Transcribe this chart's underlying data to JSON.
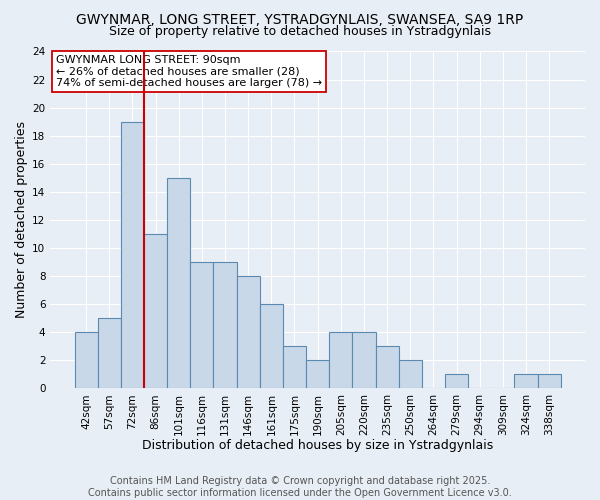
{
  "title": "GWYNMAR, LONG STREET, YSTRADGYNLAIS, SWANSEA, SA9 1RP",
  "subtitle": "Size of property relative to detached houses in Ystradgynlais",
  "xlabel": "Distribution of detached houses by size in Ystradgynlais",
  "ylabel": "Number of detached properties",
  "categories": [
    "42sqm",
    "57sqm",
    "72sqm",
    "86sqm",
    "101sqm",
    "116sqm",
    "131sqm",
    "146sqm",
    "161sqm",
    "175sqm",
    "190sqm",
    "205sqm",
    "220sqm",
    "235sqm",
    "250sqm",
    "264sqm",
    "279sqm",
    "294sqm",
    "309sqm",
    "324sqm",
    "338sqm"
  ],
  "values": [
    4,
    5,
    19,
    11,
    15,
    9,
    9,
    8,
    6,
    3,
    2,
    4,
    4,
    3,
    2,
    0,
    1,
    0,
    0,
    1,
    1
  ],
  "bar_color": "#c8d8e8",
  "bar_edge_color": "#5a8ab0",
  "vline_x_index": 3,
  "vline_color": "#cc0000",
  "ylim": [
    0,
    24
  ],
  "yticks": [
    0,
    2,
    4,
    6,
    8,
    10,
    12,
    14,
    16,
    18,
    20,
    22,
    24
  ],
  "annotation_title": "GWYNMAR LONG STREET: 90sqm",
  "annotation_line1": "← 26% of detached houses are smaller (28)",
  "annotation_line2": "74% of semi-detached houses are larger (78) →",
  "annotation_box_color": "#ffffff",
  "annotation_box_edge": "#cc0000",
  "footnote": "Contains HM Land Registry data © Crown copyright and database right 2025.\nContains public sector information licensed under the Open Government Licence v3.0.",
  "bg_color": "#e8eef5",
  "grid_color": "#ffffff",
  "title_fontsize": 10,
  "subtitle_fontsize": 9,
  "axis_label_fontsize": 9,
  "tick_fontsize": 7.5,
  "annotation_fontsize": 8,
  "footnote_fontsize": 7
}
